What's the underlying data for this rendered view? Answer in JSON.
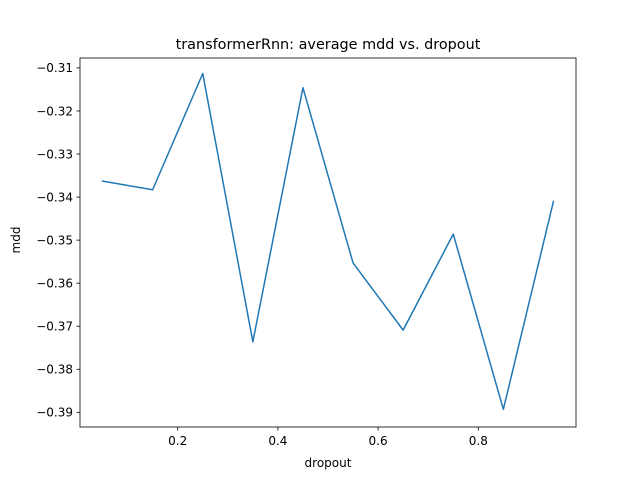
{
  "chart_data": {
    "type": "line",
    "title": "transformerRnn: average mdd vs. dropout",
    "xlabel": "dropout",
    "ylabel": "mdd",
    "xlim": [
      0.005,
      0.995
    ],
    "ylim": [
      -0.3934,
      -0.3077
    ],
    "xticks": [
      0.2,
      0.4,
      0.6,
      0.8
    ],
    "xtick_labels": [
      "0.2",
      "0.4",
      "0.6",
      "0.8"
    ],
    "yticks": [
      -0.39,
      -0.38,
      -0.37,
      -0.36,
      -0.35,
      -0.34,
      -0.33,
      -0.32,
      -0.31
    ],
    "ytick_labels": [
      "−0.39",
      "−0.38",
      "−0.37",
      "−0.36",
      "−0.35",
      "−0.34",
      "−0.33",
      "−0.32",
      "−0.31"
    ],
    "grid": false,
    "series": [
      {
        "color": "#1f77b4",
        "x": [
          0.05,
          0.15,
          0.25,
          0.35,
          0.45,
          0.55,
          0.65,
          0.75,
          0.85,
          0.95
        ],
        "y": [
          -0.3363,
          -0.3383,
          -0.3113,
          -0.3736,
          -0.3146,
          -0.3553,
          -0.3709,
          -0.3486,
          -0.3893,
          -0.341
        ]
      }
    ]
  }
}
